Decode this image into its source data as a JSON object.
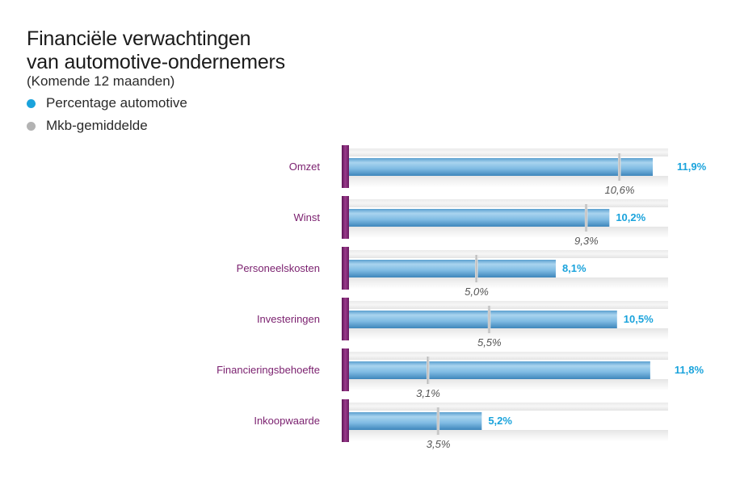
{
  "title_line1": "Financiële verwachtingen",
  "title_line2": "van automotive-ondernemers",
  "subtitle": "(Komende 12 maanden)",
  "legend": [
    {
      "label": "Percentage automotive",
      "color": "#1aa3dc"
    },
    {
      "label": "Mkb-gemiddelde",
      "color": "#b3b3b3"
    }
  ],
  "colors": {
    "bar": "#8cc3e6",
    "bar_dark": "#4a91c2",
    "category": "#7a1f6e",
    "value": "#1aa3dc",
    "average": "#555555"
  },
  "chart_data": {
    "type": "bar",
    "orientation": "horizontal",
    "title": "Financiële verwachtingen van automotive-ondernemers",
    "subtitle": "(Komende 12 maanden)",
    "categories": [
      "Omzet",
      "Winst",
      "Personeelskosten",
      "Investeringen",
      "Financieringsbehoefte",
      "Inkoopwaarde"
    ],
    "series": [
      {
        "name": "Percentage automotive",
        "values": [
          11.9,
          10.2,
          8.1,
          10.5,
          11.8,
          5.2
        ],
        "labels": [
          "11,9%",
          "10,2%",
          "8,1%",
          "10,5%",
          "11,8%",
          "5,2%"
        ]
      },
      {
        "name": "Mkb-gemiddelde",
        "values": [
          10.6,
          9.3,
          5.0,
          5.5,
          3.1,
          3.5
        ],
        "labels": [
          "10,6%",
          "9,3%",
          "5,0%",
          "5,5%",
          "3,1%",
          "3,5%"
        ]
      }
    ],
    "xlim": [
      0,
      12.5
    ],
    "units": "%"
  }
}
